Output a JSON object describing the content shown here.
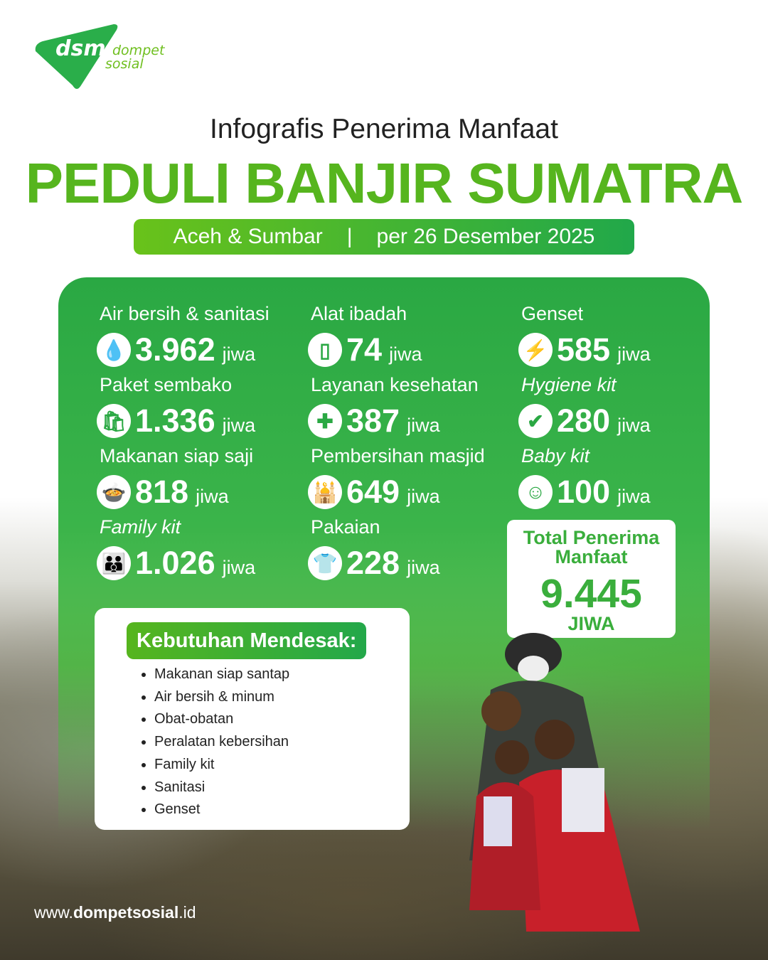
{
  "brand": {
    "logo_text": "dsm",
    "name_line1": "dompet",
    "name_line2": "sosial",
    "color": "#2aae4a"
  },
  "header": {
    "subtitle": "Infografis Penerima Manfaat",
    "title": "PEDULI BANJIR SUMATRA",
    "region": "Aceh & Sumbar",
    "separator": "|",
    "date": "per 26 Desember 2025"
  },
  "unit": "jiwa",
  "items": [
    {
      "label": "Air bersih & sanitasi",
      "value": "3.962",
      "icon": "water-drop-icon",
      "glyph": "💧"
    },
    {
      "label": "Alat ibadah",
      "value": "74",
      "icon": "prayer-mat-icon",
      "glyph": "▯"
    },
    {
      "label": "Genset",
      "value": "585",
      "icon": "generator-icon",
      "glyph": "⚡"
    },
    {
      "label": "Paket sembako",
      "value": "1.336",
      "icon": "grocery-bag-icon",
      "glyph": "🛍"
    },
    {
      "label": "Layanan kesehatan",
      "value": "387",
      "icon": "medical-cross-icon",
      "glyph": "✚"
    },
    {
      "label": "Hygiene kit",
      "value": "280",
      "icon": "shield-check-icon",
      "glyph": "✔"
    },
    {
      "label": "Makanan siap saji",
      "value": "818",
      "icon": "food-icon",
      "glyph": "🍲"
    },
    {
      "label": "Pembersihan masjid",
      "value": "649",
      "icon": "mosque-icon",
      "glyph": "🕌"
    },
    {
      "label": "Baby kit",
      "value": "100",
      "icon": "baby-icon",
      "glyph": "☺"
    },
    {
      "label": "Family kit",
      "value": "1.026",
      "icon": "family-icon",
      "glyph": "👪"
    },
    {
      "label": "Pakaian",
      "value": "228",
      "icon": "tshirt-icon",
      "glyph": "👕"
    }
  ],
  "total": {
    "label": "Total Penerima Manfaat",
    "value": "9.445",
    "unit": "JIWA"
  },
  "needs": {
    "heading": "Kebutuhan Mendesak:",
    "items": [
      "Makanan siap santap",
      "Air bersih & minum",
      "Obat-obatan",
      "Peralatan kebersihan",
      "Family kit",
      "Sanitasi",
      "Genset"
    ]
  },
  "footer": {
    "url_prefix": "www.",
    "url_bold": "dompetsosial",
    "url_suffix": ".id"
  }
}
